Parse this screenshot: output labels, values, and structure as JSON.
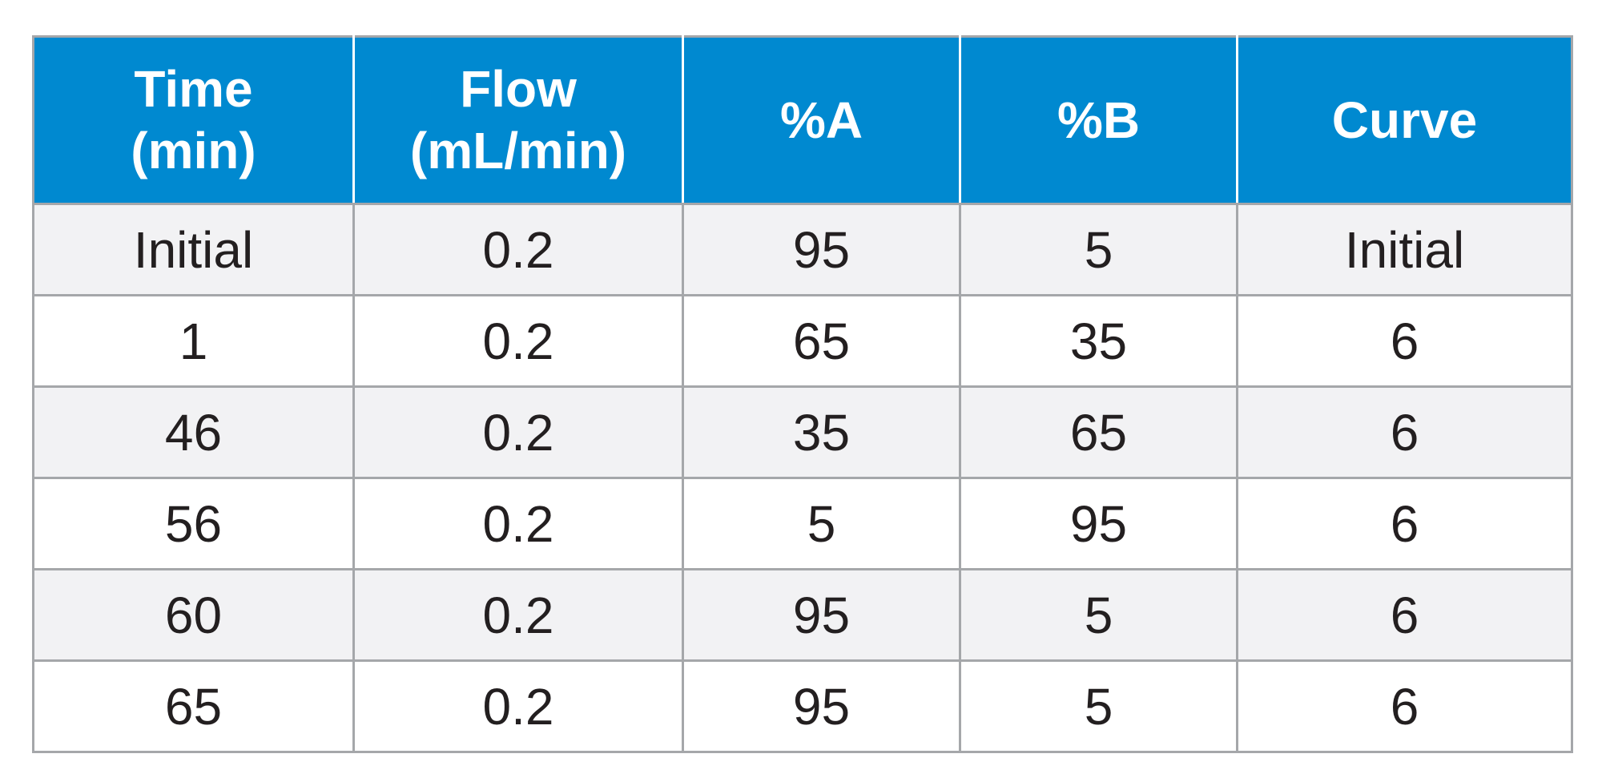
{
  "theme": {
    "header_bg": "#0089d0",
    "header_text": "#ffffff",
    "row_shaded_bg": "#f2f2f4",
    "row_plain_bg": "#ffffff",
    "grid_line": "#a5a7aa",
    "cell_text": "#231f20"
  },
  "table": {
    "headers": [
      {
        "line1": "Time",
        "line2": "(min)"
      },
      {
        "line1": "Flow",
        "line2": "(mL/min)"
      },
      {
        "line1": "%A",
        "line2": ""
      },
      {
        "line1": "%B",
        "line2": ""
      },
      {
        "line1": "Curve",
        "line2": ""
      }
    ],
    "rows": [
      [
        "Initial",
        "0.2",
        "95",
        "5",
        "Initial"
      ],
      [
        "1",
        "0.2",
        "65",
        "35",
        "6"
      ],
      [
        "46",
        "0.2",
        "35",
        "65",
        "6"
      ],
      [
        "56",
        "0.2",
        "5",
        "95",
        "6"
      ],
      [
        "60",
        "0.2",
        "95",
        "5",
        "6"
      ],
      [
        "65",
        "0.2",
        "95",
        "5",
        "6"
      ]
    ]
  }
}
